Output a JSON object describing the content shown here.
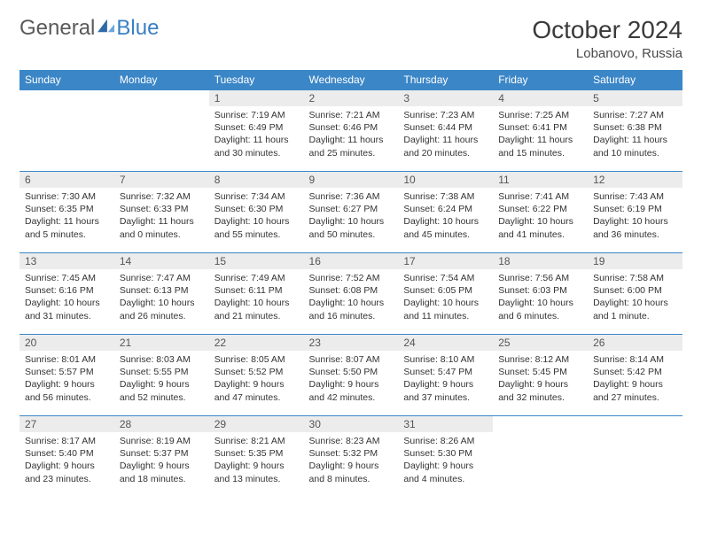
{
  "logo": {
    "text1": "General",
    "text2": "Blue",
    "sail_color": "#2f6aa8"
  },
  "header": {
    "month": "October 2024",
    "location": "Lobanovo, Russia"
  },
  "colors": {
    "header_bg": "#3b86c7",
    "header_text": "#ffffff",
    "daynum_bg": "#ececec",
    "row_border": "#3b86c7",
    "body_text": "#333333",
    "title_text": "#3a3a3a"
  },
  "typography": {
    "month_fontsize": 28,
    "location_fontsize": 15,
    "dayheader_fontsize": 12,
    "dayinfo_fontsize": 10.5
  },
  "day_headers": [
    "Sunday",
    "Monday",
    "Tuesday",
    "Wednesday",
    "Thursday",
    "Friday",
    "Saturday"
  ],
  "weeks": [
    [
      null,
      null,
      {
        "n": "1",
        "sr": "7:19 AM",
        "ss": "6:49 PM",
        "dl": "11 hours and 30 minutes."
      },
      {
        "n": "2",
        "sr": "7:21 AM",
        "ss": "6:46 PM",
        "dl": "11 hours and 25 minutes."
      },
      {
        "n": "3",
        "sr": "7:23 AM",
        "ss": "6:44 PM",
        "dl": "11 hours and 20 minutes."
      },
      {
        "n": "4",
        "sr": "7:25 AM",
        "ss": "6:41 PM",
        "dl": "11 hours and 15 minutes."
      },
      {
        "n": "5",
        "sr": "7:27 AM",
        "ss": "6:38 PM",
        "dl": "11 hours and 10 minutes."
      }
    ],
    [
      {
        "n": "6",
        "sr": "7:30 AM",
        "ss": "6:35 PM",
        "dl": "11 hours and 5 minutes."
      },
      {
        "n": "7",
        "sr": "7:32 AM",
        "ss": "6:33 PM",
        "dl": "11 hours and 0 minutes."
      },
      {
        "n": "8",
        "sr": "7:34 AM",
        "ss": "6:30 PM",
        "dl": "10 hours and 55 minutes."
      },
      {
        "n": "9",
        "sr": "7:36 AM",
        "ss": "6:27 PM",
        "dl": "10 hours and 50 minutes."
      },
      {
        "n": "10",
        "sr": "7:38 AM",
        "ss": "6:24 PM",
        "dl": "10 hours and 45 minutes."
      },
      {
        "n": "11",
        "sr": "7:41 AM",
        "ss": "6:22 PM",
        "dl": "10 hours and 41 minutes."
      },
      {
        "n": "12",
        "sr": "7:43 AM",
        "ss": "6:19 PM",
        "dl": "10 hours and 36 minutes."
      }
    ],
    [
      {
        "n": "13",
        "sr": "7:45 AM",
        "ss": "6:16 PM",
        "dl": "10 hours and 31 minutes."
      },
      {
        "n": "14",
        "sr": "7:47 AM",
        "ss": "6:13 PM",
        "dl": "10 hours and 26 minutes."
      },
      {
        "n": "15",
        "sr": "7:49 AM",
        "ss": "6:11 PM",
        "dl": "10 hours and 21 minutes."
      },
      {
        "n": "16",
        "sr": "7:52 AM",
        "ss": "6:08 PM",
        "dl": "10 hours and 16 minutes."
      },
      {
        "n": "17",
        "sr": "7:54 AM",
        "ss": "6:05 PM",
        "dl": "10 hours and 11 minutes."
      },
      {
        "n": "18",
        "sr": "7:56 AM",
        "ss": "6:03 PM",
        "dl": "10 hours and 6 minutes."
      },
      {
        "n": "19",
        "sr": "7:58 AM",
        "ss": "6:00 PM",
        "dl": "10 hours and 1 minute."
      }
    ],
    [
      {
        "n": "20",
        "sr": "8:01 AM",
        "ss": "5:57 PM",
        "dl": "9 hours and 56 minutes."
      },
      {
        "n": "21",
        "sr": "8:03 AM",
        "ss": "5:55 PM",
        "dl": "9 hours and 52 minutes."
      },
      {
        "n": "22",
        "sr": "8:05 AM",
        "ss": "5:52 PM",
        "dl": "9 hours and 47 minutes."
      },
      {
        "n": "23",
        "sr": "8:07 AM",
        "ss": "5:50 PM",
        "dl": "9 hours and 42 minutes."
      },
      {
        "n": "24",
        "sr": "8:10 AM",
        "ss": "5:47 PM",
        "dl": "9 hours and 37 minutes."
      },
      {
        "n": "25",
        "sr": "8:12 AM",
        "ss": "5:45 PM",
        "dl": "9 hours and 32 minutes."
      },
      {
        "n": "26",
        "sr": "8:14 AM",
        "ss": "5:42 PM",
        "dl": "9 hours and 27 minutes."
      }
    ],
    [
      {
        "n": "27",
        "sr": "8:17 AM",
        "ss": "5:40 PM",
        "dl": "9 hours and 23 minutes."
      },
      {
        "n": "28",
        "sr": "8:19 AM",
        "ss": "5:37 PM",
        "dl": "9 hours and 18 minutes."
      },
      {
        "n": "29",
        "sr": "8:21 AM",
        "ss": "5:35 PM",
        "dl": "9 hours and 13 minutes."
      },
      {
        "n": "30",
        "sr": "8:23 AM",
        "ss": "5:32 PM",
        "dl": "9 hours and 8 minutes."
      },
      {
        "n": "31",
        "sr": "8:26 AM",
        "ss": "5:30 PM",
        "dl": "9 hours and 4 minutes."
      },
      null,
      null
    ]
  ],
  "labels": {
    "sunrise": "Sunrise:",
    "sunset": "Sunset:",
    "daylight": "Daylight:"
  }
}
